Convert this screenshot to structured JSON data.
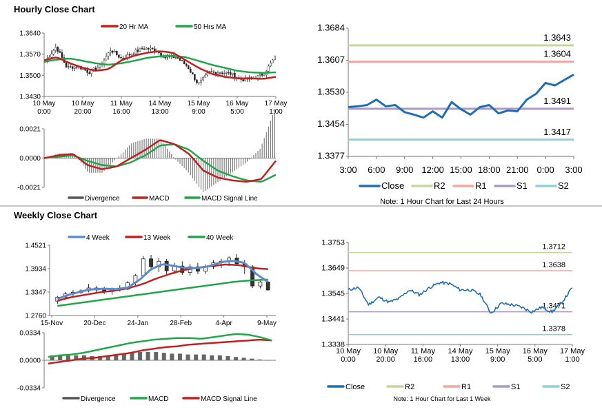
{
  "sections": {
    "hourly_title": "Hourly Close Chart",
    "weekly_title": "Weekly Close Chart"
  },
  "chart_data": [
    {
      "id": "hourly-ohlc",
      "type": "candlestick",
      "legend": [
        {
          "name": "20 Hr MA",
          "color": "#c0211f"
        },
        {
          "name": "50 Hrs MA",
          "color": "#21a64a"
        }
      ],
      "y_ticks": [
        "1.3640",
        "1.3570",
        "1.3500",
        "1.3430"
      ],
      "ylim": [
        1.343,
        1.364
      ],
      "x_ticks": [
        [
          "10 May",
          "0:00"
        ],
        [
          "10 May",
          "20:00"
        ],
        [
          "11 May",
          "16:00"
        ],
        [
          "14 May",
          "13:00"
        ],
        [
          "15 May",
          "9:00"
        ],
        [
          "16 May",
          "5:00"
        ],
        [
          "17 May",
          "1:00"
        ]
      ],
      "close_anchors": [
        1.3545,
        1.3595,
        1.3525,
        1.353,
        1.351,
        1.353,
        1.3585,
        1.3555,
        1.3575,
        1.359,
        1.3585,
        1.356,
        1.356,
        1.353,
        1.347,
        1.351,
        1.351,
        1.3505,
        1.3485,
        1.349,
        1.3505,
        1.356
      ],
      "ma20_anchors": [
        1.355,
        1.356,
        1.354,
        1.3525,
        1.3515,
        1.352,
        1.355,
        1.3565,
        1.3575,
        1.358,
        1.3575,
        1.355,
        1.3525,
        1.3505,
        1.3495,
        1.349,
        1.349,
        1.3488,
        1.3495
      ],
      "ma50_anchors": [
        1.3545,
        1.3552,
        1.3556,
        1.3548,
        1.354,
        1.3535,
        1.354,
        1.3548,
        1.3558,
        1.3563,
        1.3565,
        1.356,
        1.3548,
        1.3535,
        1.3525,
        1.3515,
        1.351,
        1.3508,
        1.351
      ]
    },
    {
      "id": "hourly-macd",
      "type": "bar+line",
      "legend": [
        {
          "name": "Divergence",
          "color": "#555555"
        },
        {
          "name": "MACD",
          "color": "#c0211f"
        },
        {
          "name": "MACD Signal Line",
          "color": "#21a64a"
        }
      ],
      "y_ticks": [
        "0.0021",
        "0.0000",
        "-0.0021"
      ],
      "ylim": [
        -0.0021,
        0.0021
      ],
      "macd_anchors": [
        0.0,
        0.0002,
        0.0003,
        -0.0005,
        -0.0008,
        -0.0006,
        0.0,
        0.0006,
        0.0013,
        0.001,
        0.0003,
        -0.0009,
        -0.0014,
        -0.0016,
        -0.0017,
        -0.0015,
        -0.0002
      ],
      "signal_anchors": [
        0.0,
        0.0001,
        0.0002,
        -0.0002,
        -0.0005,
        -0.0006,
        -0.0003,
        0.0002,
        0.0009,
        0.001,
        0.0006,
        -0.0002,
        -0.0009,
        -0.0013,
        -0.0016,
        -0.0017,
        -0.0012
      ]
    },
    {
      "id": "hourly-levels",
      "type": "line",
      "y_ticks": [
        "1.3684",
        "1.3607",
        "1.3530",
        "1.3454",
        "1.3377"
      ],
      "ylim": [
        1.3377,
        1.3684
      ],
      "x_ticks": [
        "3:00",
        "6:00",
        "9:00",
        "12:00",
        "15:00",
        "18:00",
        "21:00",
        "0:00",
        "3:00"
      ],
      "close": [
        1.3495,
        1.3497,
        1.35,
        1.3513,
        1.3497,
        1.35,
        1.3483,
        1.3477,
        1.347,
        1.3485,
        1.347,
        1.3507,
        1.349,
        1.3477,
        1.3495,
        1.35,
        1.348,
        1.3487,
        1.3485,
        1.3513,
        1.3527,
        1.3553,
        1.3547,
        1.356,
        1.3573
      ],
      "levels": [
        {
          "key": "R2",
          "value": 1.3643,
          "label": "1.3643",
          "color": "#c5d89a"
        },
        {
          "key": "R1",
          "value": 1.3604,
          "label": "1.3604",
          "color": "#f2a7a2"
        },
        {
          "key": "S1",
          "value": 1.3491,
          "label": "1.3491",
          "color": "#a89ac6"
        },
        {
          "key": "S2",
          "value": 1.3417,
          "label": "1.3417",
          "color": "#8fcfd8"
        }
      ],
      "legend": [
        {
          "name": "Close",
          "color": "#1f6eb5"
        },
        {
          "name": "R2",
          "color": "#c5d89a"
        },
        {
          "name": "R1",
          "color": "#f2a7a2"
        },
        {
          "name": "S1",
          "color": "#a89ac6"
        },
        {
          "name": "S2",
          "color": "#8fcfd8"
        }
      ],
      "note": "Note: 1 Hour Chart for Last 24 Hours"
    },
    {
      "id": "weekly-ohlc",
      "type": "candlestick",
      "legend": [
        {
          "name": "4 Week",
          "color": "#5b8ccc"
        },
        {
          "name": "13 Week",
          "color": "#c0211f"
        },
        {
          "name": "40 Week",
          "color": "#21a64a"
        }
      ],
      "y_ticks": [
        "1.4521",
        "1.3934",
        "1.3347",
        "1.2760"
      ],
      "ylim": [
        1.276,
        1.4521
      ],
      "x_ticks": [
        "15-Nov",
        "20-Dec",
        "24-Jan",
        "28-Feb",
        "4-Apr",
        "9-May"
      ],
      "candles": [
        [
          1.312,
          1.325,
          1.305,
          1.322
        ],
        [
          1.322,
          1.335,
          1.318,
          1.33
        ],
        [
          1.33,
          1.34,
          1.325,
          1.334
        ],
        [
          1.334,
          1.342,
          1.33,
          1.338
        ],
        [
          1.338,
          1.355,
          1.334,
          1.345
        ],
        [
          1.345,
          1.35,
          1.332,
          1.34
        ],
        [
          1.34,
          1.348,
          1.33,
          1.336
        ],
        [
          1.336,
          1.346,
          1.328,
          1.344
        ],
        [
          1.344,
          1.352,
          1.336,
          1.342
        ],
        [
          1.342,
          1.362,
          1.34,
          1.358
        ],
        [
          1.358,
          1.38,
          1.352,
          1.376
        ],
        [
          1.376,
          1.425,
          1.372,
          1.418
        ],
        [
          1.418,
          1.428,
          1.39,
          1.398
        ],
        [
          1.398,
          1.42,
          1.385,
          1.412
        ],
        [
          1.412,
          1.418,
          1.378,
          1.388
        ],
        [
          1.388,
          1.408,
          1.38,
          1.4
        ],
        [
          1.4,
          1.412,
          1.378,
          1.384
        ],
        [
          1.384,
          1.405,
          1.376,
          1.398
        ],
        [
          1.398,
          1.408,
          1.38,
          1.387
        ],
        [
          1.387,
          1.404,
          1.38,
          1.398
        ],
        [
          1.398,
          1.415,
          1.392,
          1.408
        ],
        [
          1.408,
          1.418,
          1.395,
          1.412
        ],
        [
          1.412,
          1.424,
          1.4,
          1.42
        ],
        [
          1.42,
          1.43,
          1.402,
          1.406
        ],
        [
          1.406,
          1.415,
          1.38,
          1.398
        ],
        [
          1.398,
          1.402,
          1.345,
          1.35
        ],
        [
          1.35,
          1.365,
          1.344,
          1.36
        ],
        [
          1.36,
          1.362,
          1.338,
          1.34
        ]
      ],
      "ma4_anchors": [
        1.318,
        1.328,
        1.336,
        1.342,
        1.343,
        1.342,
        1.346,
        1.365,
        1.392,
        1.405,
        1.4,
        1.395,
        1.395,
        1.4,
        1.41,
        1.413,
        1.408,
        1.38,
        1.36
      ],
      "ma13_anchors": [
        1.313,
        1.322,
        1.328,
        1.334,
        1.338,
        1.344,
        1.354,
        1.368,
        1.38,
        1.39,
        1.396,
        1.4,
        1.404,
        1.402,
        1.395,
        1.392
      ],
      "ma40_anchors": [
        1.3,
        1.306,
        1.312,
        1.318,
        1.324,
        1.33,
        1.336,
        1.342,
        1.348,
        1.354,
        1.36,
        1.364,
        1.366
      ]
    },
    {
      "id": "weekly-macd",
      "type": "bar+line",
      "legend": [
        {
          "name": "Divergence",
          "color": "#555555"
        },
        {
          "name": "MACD",
          "color": "#21a64a"
        },
        {
          "name": "MACD Signal Line",
          "color": "#c0211f"
        }
      ],
      "y_ticks": [
        "0.0334",
        "0.0000",
        "-0.0334"
      ],
      "ylim": [
        -0.0334,
        0.0334
      ],
      "divergence": [
        0.006,
        0.006,
        0.006,
        0.006,
        0.006,
        0.005,
        0.005,
        0.006,
        0.007,
        0.008,
        0.009,
        0.01,
        0.01,
        0.01,
        0.009,
        0.008,
        0.008,
        0.007,
        0.007,
        0.007,
        0.006,
        0.006,
        0.005,
        0.004,
        0.003,
        0.002,
        0.001,
        0.0
      ],
      "macd_anchors": [
        0.004,
        0.006,
        0.007,
        0.009,
        0.012,
        0.015,
        0.018,
        0.021,
        0.023,
        0.025,
        0.026,
        0.027,
        0.027,
        0.026,
        0.028,
        0.03,
        0.032,
        0.031,
        0.028,
        0.024
      ],
      "signal_anchors": [
        -0.004,
        -0.002,
        0.0,
        0.002,
        0.003,
        0.005,
        0.007,
        0.009,
        0.012,
        0.014,
        0.016,
        0.017,
        0.019,
        0.02,
        0.021,
        0.022,
        0.023,
        0.024,
        0.025,
        0.024
      ]
    },
    {
      "id": "weekly-levels",
      "type": "line",
      "y_ticks": [
        "1.3753",
        "1.3649",
        "1.3545",
        "1.3441",
        "1.3338"
      ],
      "ylim": [
        1.3338,
        1.3753
      ],
      "x_ticks": [
        [
          "10 May",
          "0:00"
        ],
        [
          "10 May",
          "20:00"
        ],
        [
          "11 May",
          "16:00"
        ],
        [
          "14 May",
          "13:00"
        ],
        [
          "15 May",
          "9:00"
        ],
        [
          "16 May",
          "5:00"
        ],
        [
          "17 May",
          "1:00"
        ]
      ],
      "close_anchors": [
        1.356,
        1.357,
        1.35,
        1.353,
        1.351,
        1.3525,
        1.356,
        1.354,
        1.357,
        1.359,
        1.3585,
        1.356,
        1.356,
        1.354,
        1.3465,
        1.3505,
        1.35,
        1.349,
        1.347,
        1.349,
        1.347,
        1.351,
        1.357
      ],
      "levels": [
        {
          "key": "R2",
          "value": 1.3712,
          "label": "1.3712",
          "color": "#c5d89a"
        },
        {
          "key": "R1",
          "value": 1.3638,
          "label": "1.3638",
          "color": "#f2a7a2"
        },
        {
          "key": "S1",
          "value": 1.3471,
          "label": "1.3471",
          "color": "#a89ac6"
        },
        {
          "key": "S2",
          "value": 1.3378,
          "label": "1.3378",
          "color": "#8fcfd8"
        }
      ],
      "legend": [
        {
          "name": "Close",
          "color": "#1f6eb5"
        },
        {
          "name": "R2",
          "color": "#c5d89a"
        },
        {
          "name": "R1",
          "color": "#f2a7a2"
        },
        {
          "name": "S1",
          "color": "#a89ac6"
        },
        {
          "name": "S2",
          "color": "#8fcfd8"
        }
      ],
      "note": "Note: 1 Hour Chart for Last 1 Week"
    }
  ]
}
